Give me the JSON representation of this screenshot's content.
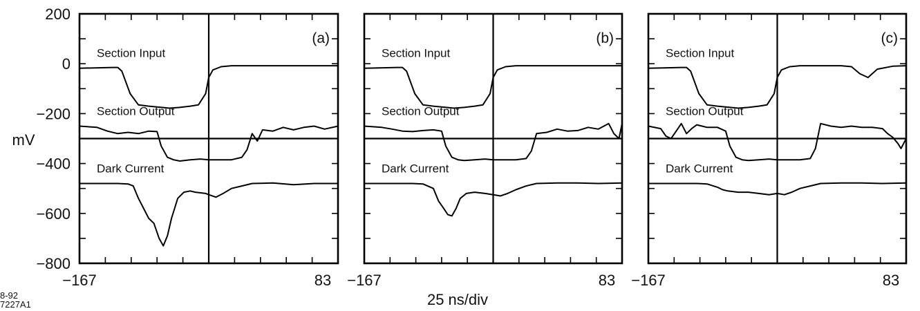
{
  "figure": {
    "y_unit_label": "mV",
    "x_scale_label": "25 ns/div",
    "stamp_line1": "8-92",
    "stamp_line2": "7227A1",
    "y_tick_labels": [
      "200",
      "0",
      "−200",
      "−400",
      "−600",
      "−800"
    ]
  },
  "chart_data": [
    {
      "type": "line",
      "panel_label": "(a)",
      "x_tick_labels": [
        "−167",
        "83"
      ],
      "xlim": [
        -167,
        83
      ],
      "ylim": [
        -800,
        200
      ],
      "grid": "crosshair at x = -42, y = -300",
      "series": [
        {
          "name": "Section Input",
          "x": [
            -167,
            -145,
            -135,
            -130,
            -126,
            -118,
            -110,
            -100,
            -80,
            -70,
            -60,
            -52,
            -45,
            -42,
            -38,
            -30,
            -20,
            0,
            20,
            40,
            60,
            83
          ],
          "y": [
            -18,
            -16,
            -15,
            -15,
            -30,
            -120,
            -165,
            -170,
            -178,
            -175,
            -170,
            -165,
            -120,
            -55,
            -25,
            -12,
            -8,
            -8,
            -8,
            -8,
            -8,
            -8
          ]
        },
        {
          "name": "Section Output",
          "x": [
            -167,
            -150,
            -140,
            -130,
            -120,
            -110,
            -100,
            -92,
            -88,
            -82,
            -76,
            -70,
            -60,
            -50,
            -42,
            -30,
            -20,
            -10,
            -5,
            0,
            5,
            10,
            20,
            30,
            40,
            50,
            60,
            70,
            83
          ],
          "y": [
            -250,
            -255,
            -270,
            -280,
            -275,
            -280,
            -270,
            -272,
            -330,
            -375,
            -385,
            -390,
            -385,
            -382,
            -385,
            -385,
            -385,
            -375,
            -345,
            -280,
            -310,
            -265,
            -270,
            -255,
            -265,
            -255,
            -250,
            -262,
            -250
          ]
        },
        {
          "name": "Dark Current",
          "x": [
            -167,
            -150,
            -130,
            -120,
            -115,
            -110,
            -100,
            -95,
            -90,
            -86,
            -82,
            -78,
            -72,
            -66,
            -60,
            -55,
            -45,
            -42,
            -35,
            -28,
            -20,
            -10,
            0,
            20,
            40,
            60,
            83
          ],
          "y": [
            -480,
            -480,
            -480,
            -482,
            -490,
            -540,
            -620,
            -640,
            -700,
            -730,
            -690,
            -620,
            -540,
            -515,
            -510,
            -515,
            -520,
            -525,
            -535,
            -520,
            -500,
            -490,
            -480,
            -478,
            -485,
            -480,
            -480
          ]
        }
      ]
    },
    {
      "type": "line",
      "panel_label": "(b)",
      "x_tick_labels": [
        "−167",
        "83"
      ],
      "xlim": [
        -167,
        83
      ],
      "ylim": [
        -800,
        200
      ],
      "grid": "crosshair at x = -42, y = -300",
      "series": [
        {
          "name": "Section Input",
          "x": [
            -167,
            -145,
            -135,
            -130,
            -126,
            -118,
            -110,
            -100,
            -80,
            -70,
            -60,
            -52,
            -45,
            -42,
            -38,
            -30,
            -20,
            0,
            20,
            40,
            60,
            83
          ],
          "y": [
            -18,
            -16,
            -15,
            -15,
            -30,
            -120,
            -165,
            -170,
            -178,
            -175,
            -170,
            -165,
            -120,
            -55,
            -25,
            -12,
            -8,
            -8,
            -8,
            -8,
            -8,
            -8
          ]
        },
        {
          "name": "Section Output",
          "x": [
            -167,
            -150,
            -140,
            -130,
            -120,
            -110,
            -100,
            -92,
            -88,
            -82,
            -76,
            -70,
            -60,
            -50,
            -42,
            -30,
            -20,
            -10,
            -5,
            0,
            10,
            20,
            30,
            40,
            50,
            60,
            70,
            75,
            80,
            83
          ],
          "y": [
            -250,
            -255,
            -262,
            -270,
            -272,
            -268,
            -265,
            -270,
            -330,
            -375,
            -385,
            -388,
            -385,
            -382,
            -385,
            -385,
            -385,
            -380,
            -350,
            -280,
            -275,
            -262,
            -270,
            -268,
            -255,
            -262,
            -240,
            -280,
            -300,
            -240
          ]
        },
        {
          "name": "Dark Current",
          "x": [
            -167,
            -140,
            -120,
            -110,
            -100,
            -95,
            -90,
            -86,
            -82,
            -78,
            -74,
            -68,
            -60,
            -50,
            -42,
            -35,
            -28,
            -20,
            -10,
            0,
            20,
            40,
            60,
            83
          ],
          "y": [
            -480,
            -480,
            -480,
            -482,
            -500,
            -550,
            -580,
            -605,
            -610,
            -580,
            -540,
            -520,
            -515,
            -520,
            -525,
            -530,
            -520,
            -505,
            -490,
            -480,
            -478,
            -478,
            -480,
            -478
          ]
        }
      ]
    },
    {
      "type": "line",
      "panel_label": "(c)",
      "x_tick_labels": [
        "−167",
        "83"
      ],
      "xlim": [
        -167,
        83
      ],
      "ylim": [
        -800,
        200
      ],
      "grid": "crosshair at x = -42, y = -300",
      "series": [
        {
          "name": "Section Input",
          "x": [
            -167,
            -145,
            -135,
            -130,
            -126,
            -118,
            -110,
            -100,
            -80,
            -70,
            -60,
            -52,
            -45,
            -42,
            -38,
            -30,
            -20,
            0,
            20,
            30,
            38,
            46,
            55,
            70,
            83
          ],
          "y": [
            -18,
            -16,
            -15,
            -15,
            -30,
            -120,
            -165,
            -170,
            -178,
            -175,
            -170,
            -165,
            -120,
            -55,
            -25,
            -12,
            -8,
            -8,
            -8,
            -12,
            -40,
            -55,
            -22,
            -10,
            -8
          ]
        },
        {
          "name": "Section Output",
          "x": [
            -167,
            -155,
            -150,
            -145,
            -140,
            -135,
            -130,
            -125,
            -120,
            -110,
            -100,
            -92,
            -88,
            -82,
            -76,
            -70,
            -60,
            -50,
            -42,
            -30,
            -20,
            -10,
            -5,
            0,
            10,
            20,
            30,
            40,
            50,
            60,
            65,
            70,
            75,
            78,
            83
          ],
          "y": [
            -250,
            -260,
            -290,
            -300,
            -270,
            -240,
            -280,
            -260,
            -245,
            -255,
            -255,
            -270,
            -330,
            -375,
            -385,
            -388,
            -385,
            -382,
            -385,
            -385,
            -385,
            -380,
            -340,
            -240,
            -250,
            -255,
            -250,
            -255,
            -255,
            -260,
            -280,
            -295,
            -320,
            -340,
            -300
          ]
        },
        {
          "name": "Dark Current",
          "x": [
            -167,
            -140,
            -120,
            -110,
            -100,
            -95,
            -90,
            -80,
            -70,
            -60,
            -50,
            -42,
            -35,
            -28,
            -20,
            -10,
            0,
            20,
            40,
            60,
            83
          ],
          "y": [
            -480,
            -480,
            -480,
            -482,
            -495,
            -505,
            -510,
            -515,
            -515,
            -520,
            -525,
            -520,
            -525,
            -515,
            -500,
            -490,
            -480,
            -478,
            -478,
            -480,
            -478
          ]
        }
      ]
    }
  ]
}
